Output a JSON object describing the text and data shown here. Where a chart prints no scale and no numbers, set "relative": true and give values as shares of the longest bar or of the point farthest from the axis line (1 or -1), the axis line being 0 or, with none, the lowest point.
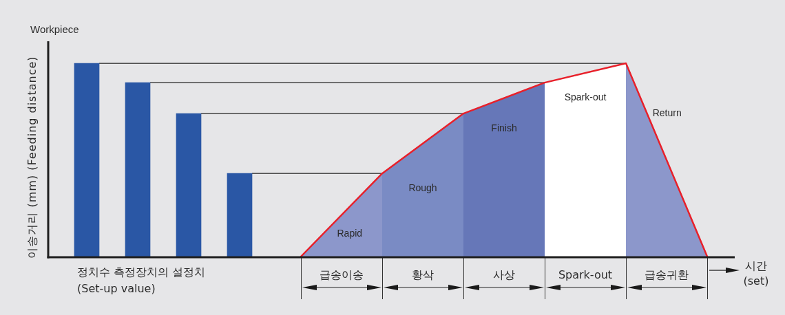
{
  "chart_data": [
    {
      "type": "bar",
      "title": "Workpiece",
      "ylabel": "이송거리 (mm) (Feeding distance)",
      "xlabel": "정치수 측정장치의 설정치\n(Set-up value)",
      "relative": true,
      "categories": [
        null,
        null,
        null,
        null
      ],
      "values": [
        1,
        0.9,
        0.74,
        0.43
      ],
      "color": "#2a57a5",
      "ref_lines": [
        {
          "axis": "y",
          "value": 1,
          "color": "#222222"
        },
        {
          "axis": "y",
          "value": 0.9,
          "color": "#222222"
        },
        {
          "axis": "y",
          "value": 0.74,
          "color": "#222222"
        },
        {
          "axis": "y",
          "value": 0.43,
          "color": "#222222"
        }
      ]
    },
    {
      "type": "line",
      "xlabel": "시간\n(set)",
      "relative": true,
      "categories": [
        null,
        null,
        null,
        null,
        null,
        null
      ],
      "marker": "none",
      "series": [
        {
          "type": "area",
          "color": "#8c97cb",
          "values": [
            0,
            0.43,
            null,
            null,
            null,
            null
          ]
        },
        {
          "type": "area",
          "color": "#7a8bc4",
          "values": [
            null,
            0.43,
            0.74,
            null,
            null,
            null
          ]
        },
        {
          "type": "area",
          "color": "#6677b8",
          "values": [
            null,
            null,
            0.74,
            0.9,
            null,
            null
          ]
        },
        {
          "type": "area",
          "color": "#ffffff",
          "values": [
            null,
            null,
            null,
            0.9,
            1,
            null
          ]
        },
        {
          "type": "area",
          "color": "#8c97cb",
          "values": [
            null,
            null,
            null,
            null,
            1,
            0
          ]
        },
        {
          "type": "line",
          "color": "#e8202a",
          "values": [
            0,
            0.43,
            0.74,
            0.9,
            1,
            0
          ]
        }
      ],
      "ref_lines": [
        {
          "axis": "y",
          "value": 1,
          "color": "#222222"
        },
        {
          "axis": "y",
          "value": 0.9,
          "color": "#222222"
        },
        {
          "axis": "y",
          "value": 0.74,
          "color": "#222222"
        },
        {
          "axis": "y",
          "value": 0.43,
          "color": "#222222"
        }
      ],
      "annotations": [
        "Rapid",
        "Rough",
        "Finish",
        "Spark-out",
        "Return",
        "급송이송",
        "황삭",
        "사상",
        "Spark-out",
        "급송귀환"
      ]
    }
  ]
}
